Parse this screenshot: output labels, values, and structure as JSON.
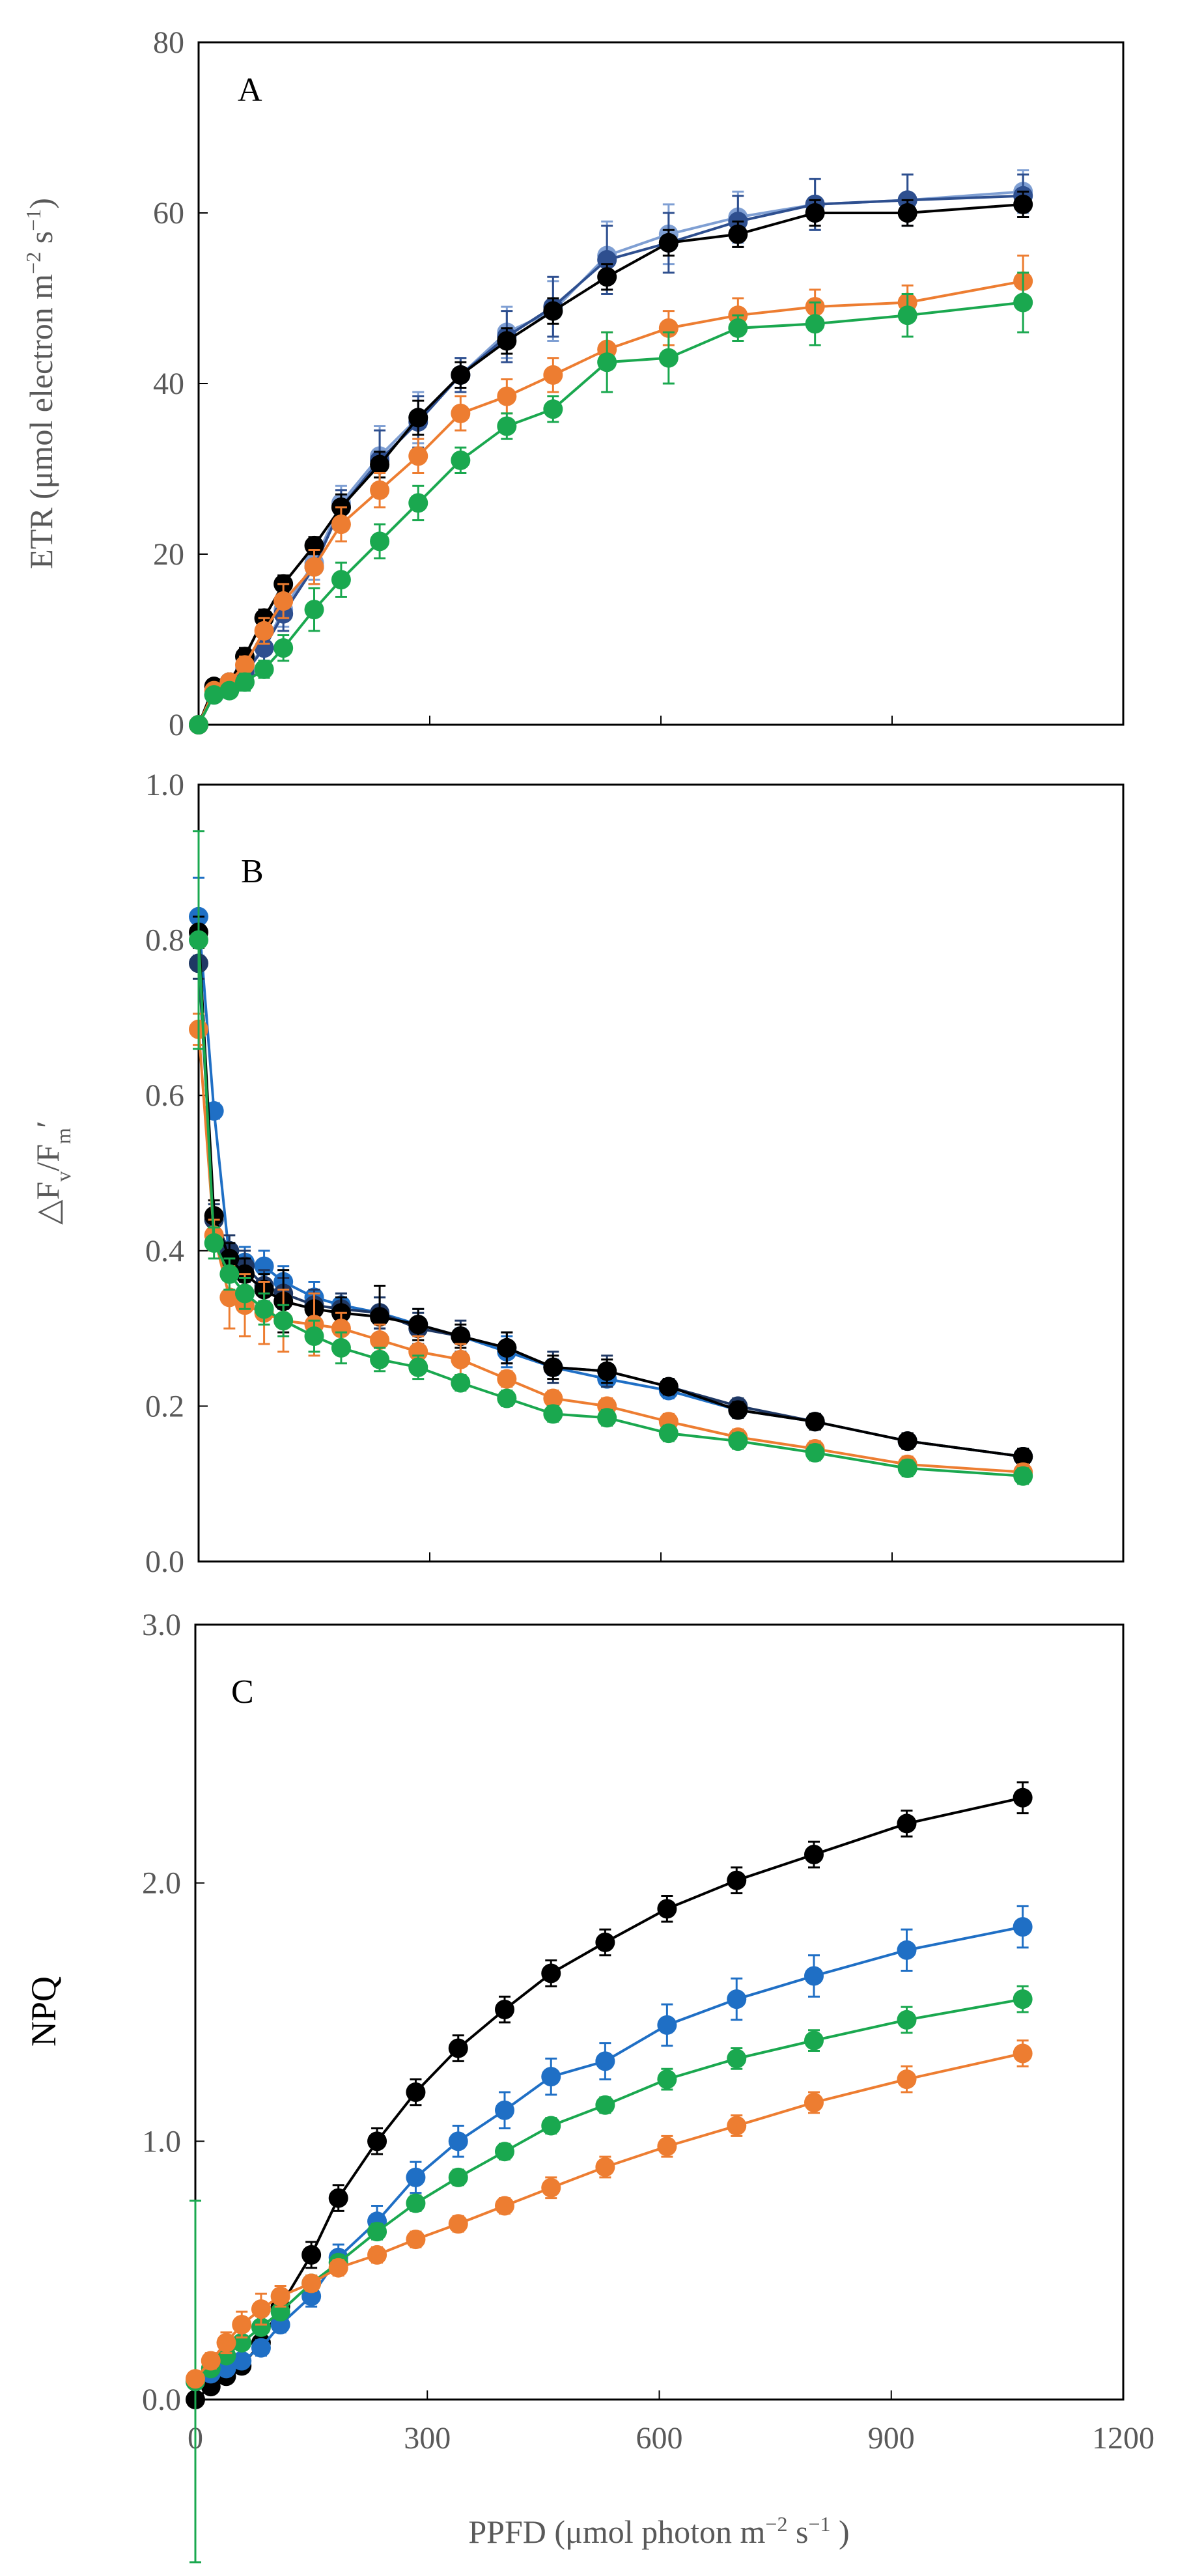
{
  "chart_data": [
    {
      "type": "line",
      "panel_label": "A",
      "ylabel": "ETR (μmol electron m−2 s−1)",
      "ylim": [
        0,
        80
      ],
      "yticks": [
        0,
        20,
        40,
        60,
        80
      ],
      "xlim": [
        0,
        1200
      ],
      "x": [
        0,
        20,
        40,
        60,
        85,
        110,
        150,
        185,
        235,
        285,
        340,
        400,
        460,
        530,
        610,
        700,
        800,
        920,
        1070
      ],
      "series": [
        {
          "name": "light blue",
          "color": "#7f9fd3",
          "values": [
            0,
            3.5,
            4.5,
            6.5,
            9,
            13.5,
            19,
            26,
            31.5,
            36,
            41,
            46,
            48.5,
            55,
            57.5,
            59.5,
            61,
            61.5,
            62.5
          ],
          "errors": [
            0,
            0.5,
            0.5,
            1,
            1.5,
            2,
            2,
            2,
            3.5,
            3,
            2,
            3,
            3.5,
            4,
            3.5,
            3,
            3,
            3,
            2.5
          ]
        },
        {
          "name": "dark blue",
          "color": "#2e4f8f",
          "values": [
            0,
            3.5,
            5,
            6,
            9,
            13,
            18.5,
            25.5,
            31,
            35.5,
            41,
            45.5,
            49,
            54.5,
            56.5,
            59,
            61,
            61.5,
            62
          ],
          "errors": [
            0,
            0.5,
            0.5,
            1,
            1.5,
            2,
            2,
            2,
            3.5,
            3,
            2,
            3,
            3.5,
            4,
            3.5,
            3,
            3,
            3,
            2.5
          ]
        },
        {
          "name": "black",
          "color": "#000000",
          "values": [
            0,
            4.5,
            5,
            8,
            12.5,
            16.5,
            21,
            25.5,
            30.5,
            36,
            41,
            45,
            48.5,
            52.5,
            56.5,
            57.5,
            60,
            60,
            61
          ],
          "errors": [
            0,
            0.5,
            0.5,
            1,
            1,
            1,
            1,
            1.5,
            1.5,
            2,
            1.5,
            1.5,
            1.5,
            1.5,
            1.5,
            1.5,
            1.5,
            1.5,
            1.5
          ]
        },
        {
          "name": "orange",
          "color": "#ed7d31",
          "values": [
            0,
            4,
            5,
            7,
            11,
            14.5,
            18.5,
            23.5,
            27.5,
            31.5,
            36.5,
            38.5,
            41,
            44,
            46.5,
            48,
            49,
            49.5,
            52
          ],
          "errors": [
            0,
            0.5,
            0.5,
            1,
            1.5,
            2,
            2,
            2,
            2,
            2,
            2,
            2,
            2,
            2,
            2,
            2,
            2,
            2,
            3
          ]
        },
        {
          "name": "green",
          "color": "#1aa84f",
          "values": [
            0,
            3.5,
            4,
            5,
            6.5,
            9,
            13.5,
            17,
            21.5,
            26,
            31,
            35,
            37,
            42.5,
            43,
            46.5,
            47,
            48,
            49.5
          ],
          "errors": [
            0,
            0.5,
            0.5,
            1,
            1,
            1.5,
            2.5,
            2,
            2,
            2,
            1.5,
            1.5,
            1.5,
            3.5,
            3,
            1.5,
            2.5,
            2.5,
            3.5
          ]
        }
      ]
    },
    {
      "type": "line",
      "panel_label": "B",
      "ylabel": "△Fv/Fm′",
      "ylim": [
        0,
        1.0
      ],
      "yticks": [
        0.0,
        0.2,
        0.4,
        0.6,
        0.8,
        1.0
      ],
      "ytick_labels": [
        "0.0",
        "0.2",
        "0.4",
        "0.6",
        "0.8",
        "1.0"
      ],
      "xlim": [
        0,
        1200
      ],
      "x": [
        0,
        20,
        40,
        60,
        85,
        110,
        150,
        185,
        235,
        285,
        340,
        400,
        460,
        530,
        610,
        700,
        800,
        920,
        1070
      ],
      "series": [
        {
          "name": "blue",
          "color": "#1f6fc5",
          "values": [
            0.83,
            0.58,
            0.39,
            0.385,
            0.38,
            0.36,
            0.34,
            0.33,
            0.32,
            0.305,
            0.29,
            0.27,
            0.25,
            0.235,
            0.22,
            0.195,
            0.18,
            0.155,
            0.135
          ],
          "errors": [
            0.05,
            0.01,
            0.02,
            0.02,
            0.02,
            0.02,
            0.02,
            0.015,
            0.02,
            0.02,
            0.01,
            0.02,
            0.01,
            0.01,
            0.01,
            0.01,
            0.01,
            0.01,
            0.01
          ]
        },
        {
          "name": "dark blue",
          "color": "#1f3864",
          "values": [
            0.77,
            0.44,
            0.4,
            0.38,
            0.355,
            0.345,
            0.33,
            0.325,
            0.32,
            0.3,
            0.29,
            0.275,
            0.25,
            0.245,
            0.225,
            0.2,
            0.18,
            0.155,
            0.135
          ],
          "errors": [
            0.02,
            0.02,
            0.02,
            0.02,
            0.02,
            0.02,
            0.02,
            0.02,
            0.02,
            0.02,
            0.02,
            0.02,
            0.02,
            0.02,
            0.01,
            0.01,
            0.01,
            0.01,
            0.01
          ]
        },
        {
          "name": "black",
          "color": "#000000",
          "values": [
            0.81,
            0.445,
            0.39,
            0.37,
            0.35,
            0.335,
            0.325,
            0.32,
            0.315,
            0.305,
            0.29,
            0.275,
            0.25,
            0.245,
            0.225,
            0.195,
            0.18,
            0.155,
            0.135
          ],
          "errors": [
            0.02,
            0.02,
            0.02,
            0.02,
            0.02,
            0.04,
            0.02,
            0.02,
            0.04,
            0.02,
            0.015,
            0.02,
            0.015,
            0.015,
            0.01,
            0.01,
            0.01,
            0.01,
            0.01
          ]
        },
        {
          "name": "orange",
          "color": "#ed7d31",
          "values": [
            0.685,
            0.42,
            0.34,
            0.33,
            0.32,
            0.31,
            0.305,
            0.3,
            0.285,
            0.27,
            0.26,
            0.235,
            0.21,
            0.2,
            0.18,
            0.16,
            0.145,
            0.125,
            0.115
          ],
          "errors": [
            0.02,
            0.02,
            0.04,
            0.04,
            0.04,
            0.04,
            0.04,
            0.02,
            0.02,
            0.02,
            0.02,
            0.01,
            0.01,
            0.01,
            0.01,
            0.01,
            0.01,
            0.01,
            0.01
          ]
        },
        {
          "name": "green",
          "color": "#1aa84f",
          "values": [
            0.8,
            0.41,
            0.37,
            0.345,
            0.325,
            0.31,
            0.29,
            0.275,
            0.26,
            0.25,
            0.23,
            0.21,
            0.19,
            0.185,
            0.165,
            0.155,
            0.14,
            0.12,
            0.11
          ],
          "errors": [
            0.14,
            0.02,
            0.02,
            0.02,
            0.02,
            0.02,
            0.02,
            0.02,
            0.015,
            0.015,
            0.01,
            0.01,
            0.01,
            0.01,
            0.01,
            0.01,
            0.01,
            0.01,
            0.01
          ]
        }
      ]
    },
    {
      "type": "line",
      "panel_label": "C",
      "ylabel": "NPQ",
      "ylim": [
        0,
        3.0
      ],
      "yticks": [
        0.0,
        1.0,
        2.0,
        3.0
      ],
      "ytick_labels": [
        "0.0",
        "1.0",
        "2.0",
        "3.0"
      ],
      "xlabel": "PPFD (μmol photon m−2 s−1 )",
      "xlim": [
        0,
        1200
      ],
      "xticks": [
        0,
        300,
        600,
        900,
        1200
      ],
      "x": [
        0,
        20,
        40,
        60,
        85,
        110,
        150,
        185,
        235,
        285,
        340,
        400,
        460,
        530,
        610,
        700,
        800,
        920,
        1070
      ],
      "series": [
        {
          "name": "black",
          "color": "#000000",
          "values": [
            0.0,
            0.05,
            0.09,
            0.13,
            0.22,
            0.36,
            0.56,
            0.78,
            1.0,
            1.19,
            1.36,
            1.51,
            1.65,
            1.77,
            1.9,
            2.01,
            2.11,
            2.23,
            2.33
          ],
          "errors": [
            0.01,
            0.01,
            0.01,
            0.02,
            0.03,
            0.04,
            0.05,
            0.05,
            0.05,
            0.05,
            0.05,
            0.05,
            0.05,
            0.05,
            0.05,
            0.05,
            0.05,
            0.05,
            0.06
          ]
        },
        {
          "name": "blue",
          "color": "#1f6fc5",
          "values": [
            0.07,
            0.1,
            0.12,
            0.15,
            0.2,
            0.29,
            0.4,
            0.55,
            0.69,
            0.86,
            1.0,
            1.12,
            1.25,
            1.31,
            1.45,
            1.55,
            1.64,
            1.74,
            1.83
          ],
          "errors": [
            0.01,
            0.01,
            0.01,
            0.02,
            0.03,
            0.03,
            0.04,
            0.05,
            0.06,
            0.06,
            0.06,
            0.07,
            0.07,
            0.07,
            0.08,
            0.08,
            0.08,
            0.08,
            0.08
          ]
        },
        {
          "name": "green",
          "color": "#1aa84f",
          "values": [
            0.07,
            0.12,
            0.17,
            0.22,
            0.28,
            0.34,
            0.45,
            0.53,
            0.65,
            0.76,
            0.86,
            0.96,
            1.06,
            1.14,
            1.24,
            1.32,
            1.39,
            1.47,
            1.55
          ],
          "errors": [
            0.7,
            0.01,
            0.01,
            0.02,
            0.02,
            0.02,
            0.03,
            0.03,
            0.03,
            0.03,
            0.03,
            0.03,
            0.03,
            0.03,
            0.04,
            0.04,
            0.04,
            0.05,
            0.05
          ]
        },
        {
          "name": "orange",
          "color": "#ed7d31",
          "values": [
            0.08,
            0.15,
            0.22,
            0.29,
            0.35,
            0.4,
            0.45,
            0.51,
            0.56,
            0.62,
            0.68,
            0.75,
            0.82,
            0.9,
            0.98,
            1.06,
            1.15,
            1.24,
            1.34
          ],
          "errors": [
            0.01,
            0.03,
            0.04,
            0.05,
            0.06,
            0.04,
            0.03,
            0.03,
            0.03,
            0.03,
            0.03,
            0.03,
            0.04,
            0.04,
            0.04,
            0.04,
            0.04,
            0.05,
            0.05
          ]
        }
      ]
    }
  ]
}
